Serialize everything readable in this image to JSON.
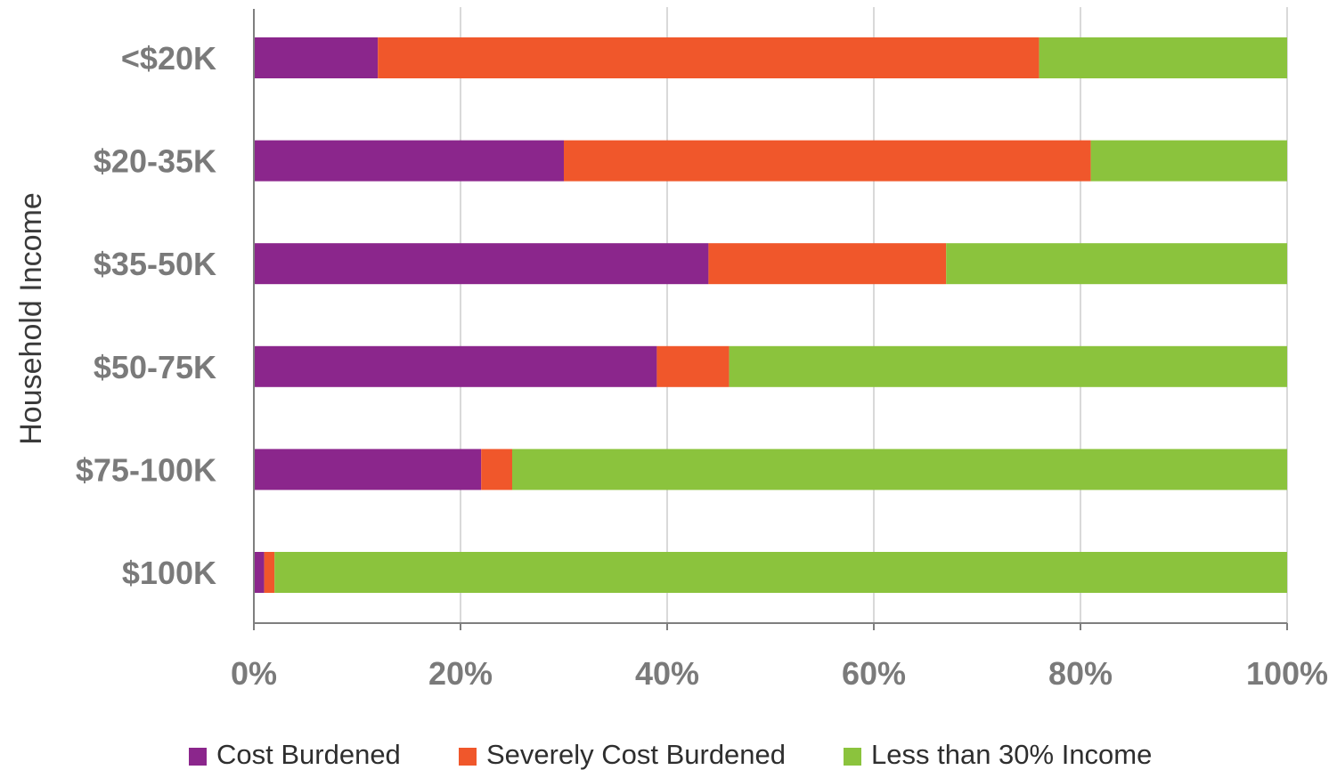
{
  "chart_data": {
    "type": "bar",
    "orientation": "horizontal",
    "stacked": true,
    "ylabel": "Household Income",
    "xlabel": "",
    "categories": [
      "<$20K",
      "$20-35K",
      "$35-50K",
      "$50-75K",
      "$75-100K",
      "$100K"
    ],
    "series": [
      {
        "name": "Cost Burdened",
        "color": "#8b268c",
        "values": [
          12,
          30,
          44,
          39,
          22,
          1
        ]
      },
      {
        "name": "Severely Cost Burdened",
        "color": "#f0572b",
        "values": [
          64,
          51,
          23,
          7,
          3,
          1
        ]
      },
      {
        "name": "Less than 30% Income",
        "color": "#8bc33d",
        "values": [
          24,
          19,
          33,
          54,
          75,
          98
        ]
      }
    ],
    "xlim": [
      0,
      100
    ],
    "xticks": [
      0,
      20,
      40,
      60,
      80,
      100
    ],
    "xtick_labels": [
      "0%",
      "20%",
      "40%",
      "60%",
      "80%",
      "100%"
    ],
    "grid": "vertical",
    "legend_position": "bottom"
  }
}
